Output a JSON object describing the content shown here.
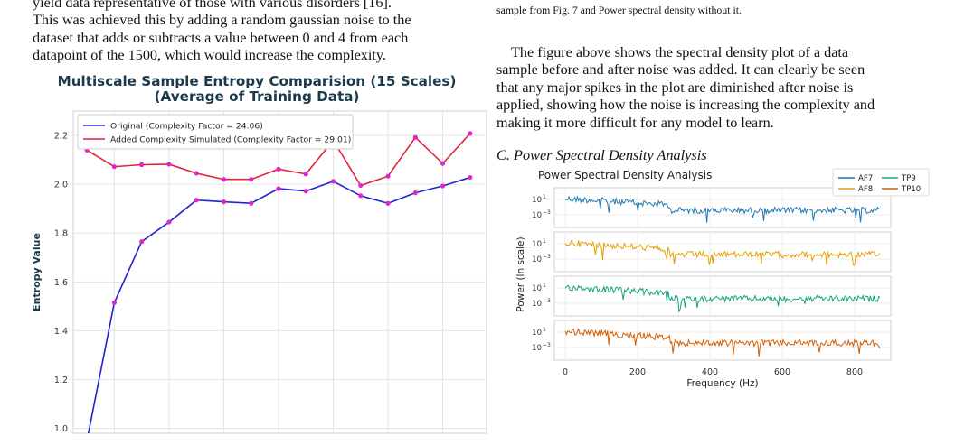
{
  "left_column": {
    "paragraph_lines": [
      "yield data representative of those with various disorders [16].",
      "This was achieved this by adding a random gaussian noise to the",
      "dataset that adds or subtracts a value between 0 and 4 from each",
      "datapoint of the 1500, which would increase the complexity."
    ]
  },
  "right_column": {
    "caption_lines": [
      "sample from Fig. 7 and Power spectral density without it."
    ],
    "paragraph_lines": [
      "The figure above shows the spectral density plot of a data",
      "sample before and after noise was added. It can clearly be seen",
      "that any major spikes in the plot are diminished after noise is",
      "applied, showing how the noise is increasing the complexity and",
      "making it more difficult for any model to learn."
    ],
    "subsection": "C.  Power Spectral Density Analysis"
  },
  "chart_data": [
    {
      "type": "line",
      "title_lines": [
        "Multiscale Sample Entropy Comparision (15 Scales)",
        "(Average of Training Data)"
      ],
      "xlabel": "",
      "ylabel": "Entropy Value",
      "x": [
        1,
        2,
        3,
        4,
        5,
        6,
        7,
        8,
        9,
        10,
        11,
        12,
        13,
        14,
        15
      ],
      "xlim": [
        0.5,
        15.6
      ],
      "ylim": [
        0.98,
        2.3
      ],
      "yticks": [
        "1.0",
        "1.2",
        "1.4",
        "1.6",
        "1.8",
        "2.0",
        "2.2"
      ],
      "grid": true,
      "legend_position": "top-left",
      "series": [
        {
          "name": "Original (Complexity Factor = 24.06)",
          "color": "#2323cf",
          "values": [
            0.95,
            1.515,
            1.765,
            1.845,
            1.935,
            1.928,
            1.922,
            1.982,
            1.972,
            2.012,
            1.953,
            1.922,
            1.965,
            1.993,
            2.028
          ]
        },
        {
          "name": "Added Complexity Simulated (Complexity Factor = 29.01)",
          "color": "#e0243a",
          "values": [
            2.14,
            2.072,
            2.08,
            2.082,
            2.045,
            2.02,
            2.02,
            2.062,
            2.042,
            2.18,
            1.995,
            2.033,
            2.192,
            2.085,
            2.208
          ]
        }
      ],
      "marker_color": "#e026c9"
    },
    {
      "type": "line",
      "title": "Power Spectral Density Analysis",
      "xlabel": "Frequency (Hz)",
      "ylabel": "Power (ln scale)",
      "xlim": [
        -30,
        900
      ],
      "xticks": [
        "0",
        "200",
        "400",
        "600",
        "800"
      ],
      "ytick_labels": [
        "10",
        "10"
      ],
      "ytick_exponents": [
        "1",
        "−3"
      ],
      "grid": true,
      "legend_position": "top-right",
      "series": [
        {
          "name": "AF7",
          "color": "#1f77b4"
        },
        {
          "name": "AF8",
          "color": "#e69f00"
        },
        {
          "name": "TP9",
          "color": "#14a37f"
        },
        {
          "name": "TP10",
          "color": "#d55e00"
        }
      ]
    }
  ]
}
